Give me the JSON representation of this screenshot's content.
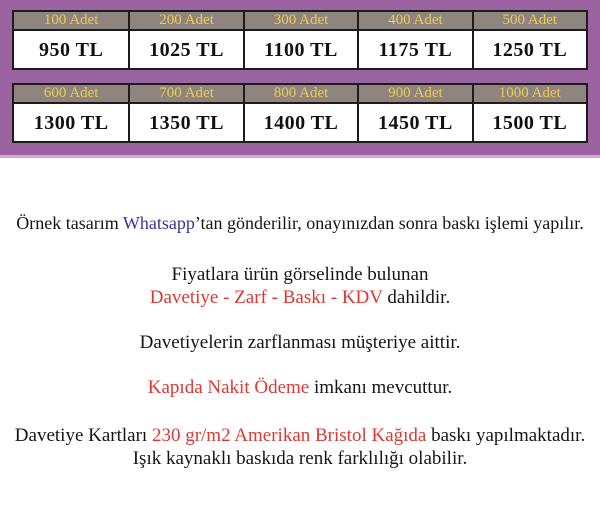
{
  "colors": {
    "banner_bg": "#9b64a0",
    "banner_edge": "#d6a6d6",
    "header_bg": "#8e857f",
    "header_text": "#edcc4e",
    "table_border": "#1c1c1c",
    "price_text": "#111111",
    "red": "#da3a33",
    "blue": "#34349a",
    "text": "#151515"
  },
  "banner": {
    "tables": [
      {
        "cells": [
          {
            "qty": "100 Adet",
            "price": "950 TL"
          },
          {
            "qty": "200 Adet",
            "price": "1025 TL"
          },
          {
            "qty": "300 Adet",
            "price": "1100 TL"
          },
          {
            "qty": "400 Adet",
            "price": "1175 TL"
          },
          {
            "qty": "500 Adet",
            "price": "1250 TL"
          }
        ]
      },
      {
        "cells": [
          {
            "qty": "600 Adet",
            "price": "1300 TL"
          },
          {
            "qty": "700 Adet",
            "price": "1350 TL"
          },
          {
            "qty": "800 Adet",
            "price": "1400 TL"
          },
          {
            "qty": "900 Adet",
            "price": "1450 TL"
          },
          {
            "qty": "1000 Adet",
            "price": "1500 TL"
          }
        ]
      }
    ]
  },
  "notes": {
    "sample": {
      "prefix": "Örnek tasarım ",
      "brand": "Whatsapp",
      "suffix": "’tan gönderilir, onayınızdan sonra baskı işlemi yapılır."
    },
    "included_intro": "Fiyatlara ürün görselinde bulunan",
    "included_items": "Davetiye - Zarf - Baskı - KDV",
    "included_suffix": " dahildir.",
    "envelope": "Davetiyelerin zarflanması müşteriye aittir.",
    "payment_highlight": "Kapıda Nakit Ödeme",
    "payment_suffix": " imkanı mevcuttur.",
    "paper_prefix": "Davetiye Kartları ",
    "paper_highlight": "230 gr/m2 Amerikan Bristol Kağıda",
    "paper_suffix": " baskı yapılmaktadır.",
    "color_note": "Işık kaynaklı baskıda renk farklılığı olabilir."
  }
}
